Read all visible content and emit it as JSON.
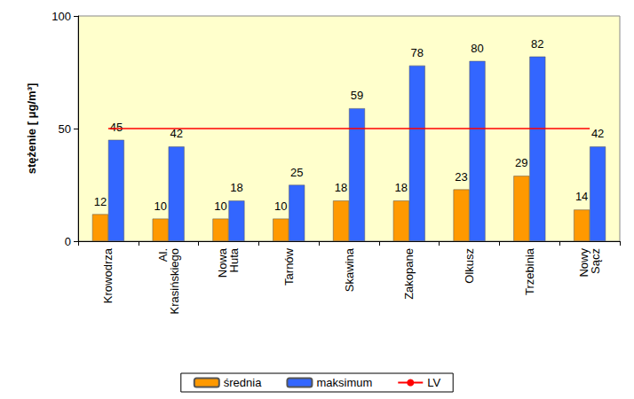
{
  "chart_data": {
    "type": "bar",
    "y_label": "stężenie [ μg/m³]",
    "categories": [
      "Krowodrza",
      "Al. Krasińskiego",
      "Nowa Huta",
      "Tarnów",
      "Skawina",
      "Zakopane",
      "Olkusz",
      "Trzebinia",
      "Nowy Sącz"
    ],
    "series": [
      {
        "name": "średnia",
        "color": "#ff9900",
        "values": [
          12,
          10,
          10,
          10,
          18,
          18,
          23,
          29,
          14
        ]
      },
      {
        "name": "maksimum",
        "color": "#3366ff",
        "values": [
          45,
          42,
          18,
          25,
          59,
          78,
          80,
          82,
          42
        ]
      },
      {
        "name": "LV",
        "type": "line",
        "color": "#ff0000",
        "values": [
          50,
          50,
          50,
          50,
          50,
          50,
          50,
          50,
          50
        ]
      }
    ],
    "ylim": [
      0,
      100
    ],
    "yticks": [
      0,
      50,
      100
    ],
    "grid": false,
    "legend": "bottom",
    "data_labels": true
  }
}
